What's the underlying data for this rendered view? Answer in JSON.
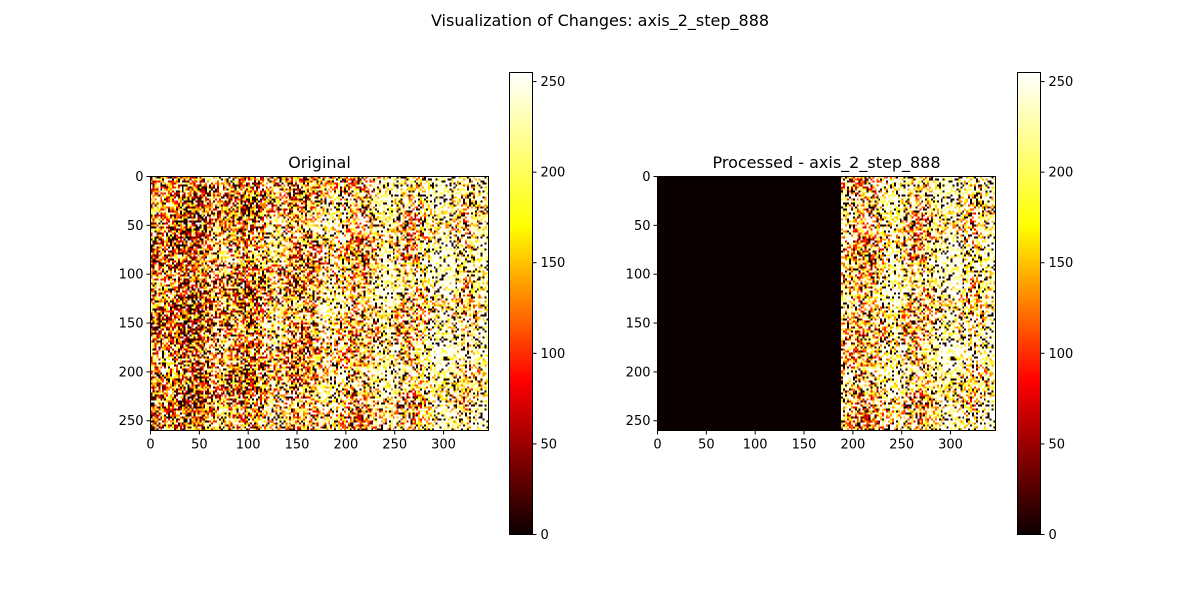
{
  "figure": {
    "suptitle": "Visualization of Changes: axis_2_step_888",
    "colormap": "hot",
    "colormap_stops": [
      "#0b0000",
      "#ff0000",
      "#ffff00",
      "#ffffff"
    ]
  },
  "chart_data": [
    {
      "type": "heatmap",
      "title": "Original",
      "image_shape": [
        260,
        346
      ],
      "xlim": [
        0,
        346
      ],
      "ylim": [
        260,
        0
      ],
      "xticks": [
        0,
        50,
        100,
        150,
        200,
        250,
        300
      ],
      "yticks": [
        0,
        50,
        100,
        150,
        200,
        250
      ],
      "value_range": [
        0,
        255
      ],
      "zeroed_columns": [],
      "colorbar": {
        "ticks": [
          0,
          50,
          100,
          150,
          200,
          250
        ],
        "range": [
          0,
          255
        ]
      }
    },
    {
      "type": "heatmap",
      "title": "Processed - axis_2_step_888",
      "image_shape": [
        260,
        346
      ],
      "xlim": [
        0,
        346
      ],
      "ylim": [
        260,
        0
      ],
      "xticks": [
        0,
        50,
        100,
        150,
        200,
        250,
        300
      ],
      "yticks": [
        0,
        50,
        100,
        150,
        200,
        250
      ],
      "value_range": [
        0,
        255
      ],
      "zeroed_columns": [
        0,
        188
      ],
      "colorbar": {
        "ticks": [
          0,
          50,
          100,
          150,
          200,
          250
        ],
        "range": [
          0,
          255
        ]
      }
    }
  ]
}
